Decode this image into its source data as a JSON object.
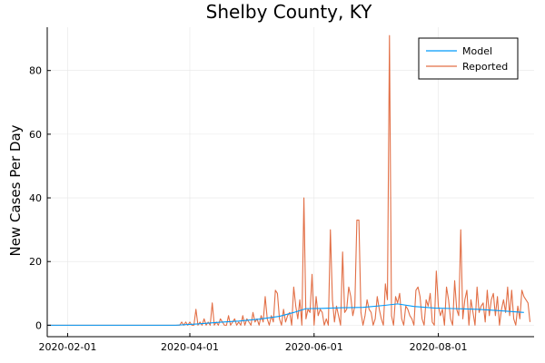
{
  "chart_data": {
    "type": "line",
    "title": "Shelby County, KY",
    "xlabel": "",
    "ylabel": "New Cases Per Day",
    "x_range": [
      "2020-01-22",
      "2020-09-17"
    ],
    "ylim": [
      -3.6,
      93.6
    ],
    "x_ticks": [
      "2020-02-01",
      "2020-04-01",
      "2020-06-01",
      "2020-08-01"
    ],
    "y_ticks": [
      0,
      20,
      40,
      60,
      80
    ],
    "grid": true,
    "legend_position": "top-right",
    "colors": {
      "model": "#009AFA",
      "reported": "#E26F46"
    },
    "series": [
      {
        "name": "Model",
        "color": "#009AFA",
        "x": [
          "2020-01-22",
          "2020-03-25",
          "2020-04-05",
          "2020-04-15",
          "2020-04-25",
          "2020-05-05",
          "2020-05-15",
          "2020-05-22",
          "2020-05-28",
          "2020-06-05",
          "2020-06-15",
          "2020-06-25",
          "2020-07-05",
          "2020-07-12",
          "2020-07-20",
          "2020-07-30",
          "2020-08-10",
          "2020-08-20",
          "2020-08-30",
          "2020-09-12"
        ],
        "values": [
          0,
          0,
          0.4,
          0.9,
          1.3,
          1.9,
          2.8,
          4.0,
          5.2,
          5.3,
          5.5,
          5.6,
          6.2,
          6.7,
          5.9,
          5.4,
          5.2,
          5.0,
          4.6,
          4.0
        ]
      },
      {
        "name": "Reported",
        "color": "#E26F46",
        "x": [
          "2020-01-22",
          "2020-03-27",
          "2020-03-28",
          "2020-03-29",
          "2020-03-30",
          "2020-03-31",
          "2020-04-01",
          "2020-04-02",
          "2020-04-03",
          "2020-04-04",
          "2020-04-05",
          "2020-04-06",
          "2020-04-07",
          "2020-04-08",
          "2020-04-09",
          "2020-04-10",
          "2020-04-11",
          "2020-04-12",
          "2020-04-13",
          "2020-04-14",
          "2020-04-15",
          "2020-04-16",
          "2020-04-17",
          "2020-04-18",
          "2020-04-19",
          "2020-04-20",
          "2020-04-21",
          "2020-04-22",
          "2020-04-23",
          "2020-04-24",
          "2020-04-25",
          "2020-04-26",
          "2020-04-27",
          "2020-04-28",
          "2020-04-29",
          "2020-04-30",
          "2020-05-01",
          "2020-05-02",
          "2020-05-03",
          "2020-05-04",
          "2020-05-05",
          "2020-05-06",
          "2020-05-07",
          "2020-05-08",
          "2020-05-09",
          "2020-05-10",
          "2020-05-11",
          "2020-05-12",
          "2020-05-13",
          "2020-05-14",
          "2020-05-15",
          "2020-05-16",
          "2020-05-17",
          "2020-05-18",
          "2020-05-19",
          "2020-05-20",
          "2020-05-21",
          "2020-05-22",
          "2020-05-23",
          "2020-05-24",
          "2020-05-25",
          "2020-05-26",
          "2020-05-27",
          "2020-05-28",
          "2020-05-29",
          "2020-05-30",
          "2020-05-31",
          "2020-06-01",
          "2020-06-02",
          "2020-06-03",
          "2020-06-04",
          "2020-06-05",
          "2020-06-06",
          "2020-06-07",
          "2020-06-08",
          "2020-06-09",
          "2020-06-10",
          "2020-06-11",
          "2020-06-12",
          "2020-06-13",
          "2020-06-14",
          "2020-06-15",
          "2020-06-16",
          "2020-06-17",
          "2020-06-18",
          "2020-06-19",
          "2020-06-20",
          "2020-06-21",
          "2020-06-22",
          "2020-06-23",
          "2020-06-24",
          "2020-06-25",
          "2020-06-26",
          "2020-06-27",
          "2020-06-28",
          "2020-06-29",
          "2020-06-30",
          "2020-07-01",
          "2020-07-02",
          "2020-07-03",
          "2020-07-04",
          "2020-07-05",
          "2020-07-06",
          "2020-07-07",
          "2020-07-08",
          "2020-07-09",
          "2020-07-10",
          "2020-07-11",
          "2020-07-12",
          "2020-07-13",
          "2020-07-14",
          "2020-07-15",
          "2020-07-16",
          "2020-07-17",
          "2020-07-18",
          "2020-07-19",
          "2020-07-20",
          "2020-07-21",
          "2020-07-22",
          "2020-07-23",
          "2020-07-24",
          "2020-07-25",
          "2020-07-26",
          "2020-07-27",
          "2020-07-28",
          "2020-07-29",
          "2020-07-30",
          "2020-07-31",
          "2020-08-01",
          "2020-08-02",
          "2020-08-03",
          "2020-08-04",
          "2020-08-05",
          "2020-08-06",
          "2020-08-07",
          "2020-08-08",
          "2020-08-09",
          "2020-08-10",
          "2020-08-11",
          "2020-08-12",
          "2020-08-13",
          "2020-08-14",
          "2020-08-15",
          "2020-08-16",
          "2020-08-17",
          "2020-08-18",
          "2020-08-19",
          "2020-08-20",
          "2020-08-21",
          "2020-08-22",
          "2020-08-23",
          "2020-08-24",
          "2020-08-25",
          "2020-08-26",
          "2020-08-27",
          "2020-08-28",
          "2020-08-29",
          "2020-08-30",
          "2020-08-31",
          "2020-09-01",
          "2020-09-02",
          "2020-09-03",
          "2020-09-04",
          "2020-09-05",
          "2020-09-06",
          "2020-09-07",
          "2020-09-08",
          "2020-09-09",
          "2020-09-10",
          "2020-09-11",
          "2020-09-12",
          "2020-09-13",
          "2020-09-14",
          "2020-09-15"
        ],
        "values": [
          0,
          0,
          1,
          0,
          1,
          0,
          1,
          0,
          0,
          5,
          0,
          1,
          0,
          2,
          0,
          1,
          0,
          7,
          0,
          1,
          0,
          2,
          1,
          0,
          0,
          3,
          0,
          1,
          2,
          0,
          1,
          0,
          3,
          0,
          2,
          1,
          0,
          4,
          1,
          2,
          0,
          3,
          1,
          9,
          2,
          0,
          3,
          1,
          11,
          10,
          2,
          0,
          5,
          1,
          3,
          4,
          0,
          12,
          6,
          2,
          8,
          0,
          40,
          2,
          5,
          4,
          16,
          0,
          9,
          3,
          5,
          4,
          0,
          2,
          0,
          30,
          8,
          1,
          6,
          3,
          0,
          23,
          4,
          5,
          12,
          9,
          3,
          6,
          33,
          33,
          4,
          0,
          3,
          8,
          5,
          4,
          0,
          2,
          9,
          5,
          2,
          0,
          13,
          8,
          91,
          3,
          0,
          9,
          7,
          10,
          2,
          0,
          6,
          5,
          3,
          2,
          0,
          11,
          12,
          9,
          2,
          0,
          8,
          6,
          10,
          1,
          0,
          17,
          6,
          3,
          5,
          0,
          12,
          8,
          2,
          0,
          14,
          5,
          3,
          30,
          2,
          8,
          11,
          0,
          8,
          4,
          0,
          12,
          4,
          6,
          7,
          1,
          11,
          3,
          8,
          10,
          3,
          9,
          0,
          5,
          8,
          4,
          12,
          3,
          11,
          2,
          0,
          6,
          2,
          11,
          9,
          8,
          7,
          1
        ]
      }
    ]
  }
}
